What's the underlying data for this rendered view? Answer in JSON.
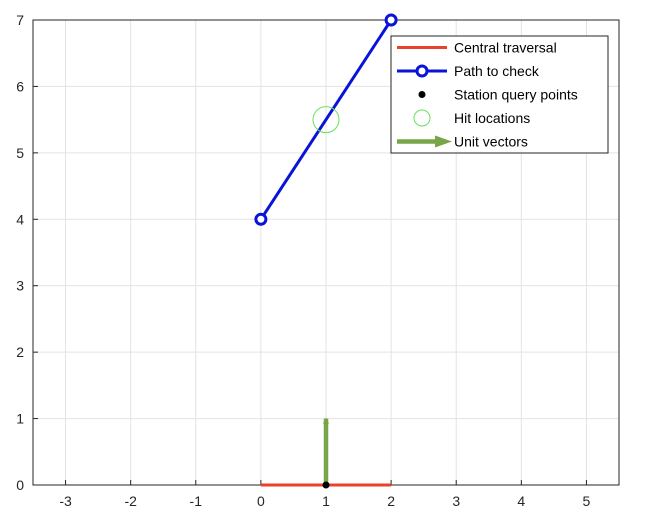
{
  "chart_data": {
    "type": "line",
    "xlim": [
      -3.5,
      5.5
    ],
    "ylim": [
      0,
      7
    ],
    "x_ticks": [
      -3,
      -2,
      -1,
      0,
      1,
      2,
      3,
      4,
      5
    ],
    "y_ticks": [
      0,
      1,
      2,
      3,
      4,
      5,
      6,
      7
    ],
    "x_tick_labels": [
      "-3",
      "-2",
      "-1",
      "0",
      "1",
      "2",
      "3",
      "4",
      "5"
    ],
    "y_tick_labels": [
      "0",
      "1",
      "2",
      "3",
      "4",
      "5",
      "6",
      "7"
    ],
    "grid": true,
    "legend_position": "top-right",
    "series": [
      {
        "name": "Central traversal",
        "kind": "line",
        "color": "#e8432a",
        "x": [
          0,
          2
        ],
        "y": [
          0,
          0
        ]
      },
      {
        "name": "Path to check",
        "kind": "line-marker",
        "color": "#0a14d8",
        "x": [
          0,
          2
        ],
        "y": [
          4,
          7
        ]
      },
      {
        "name": "Station query points",
        "kind": "points",
        "color": "#000000",
        "x": [
          1
        ],
        "y": [
          0
        ]
      },
      {
        "name": "Hit locations",
        "kind": "circles",
        "color": "#66e25a",
        "x": [
          1
        ],
        "y": [
          5.5
        ]
      },
      {
        "name": "Unit vectors",
        "kind": "arrow",
        "color": "#77a548",
        "x": [
          1
        ],
        "y": [
          0
        ],
        "u": [
          0
        ],
        "v": [
          1
        ]
      }
    ]
  }
}
